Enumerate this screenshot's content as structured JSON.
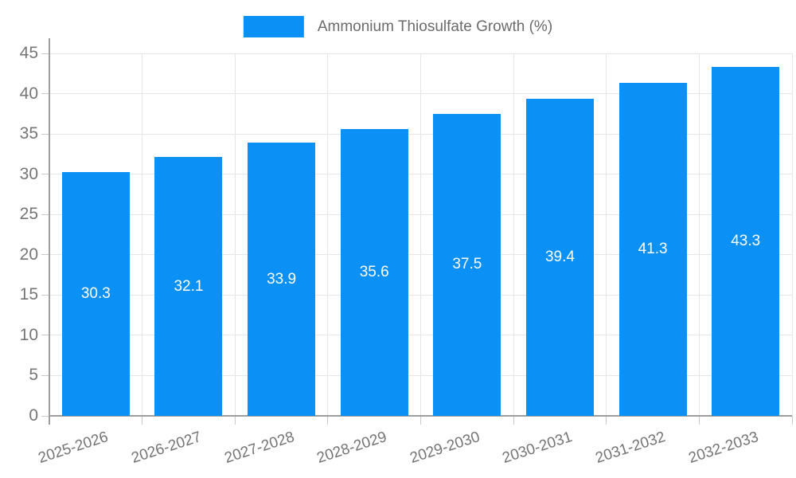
{
  "chart_data": {
    "type": "bar",
    "title": "Ammonium Thiosulfate Growth (%)",
    "legend": {
      "label": "Ammonium Thiosulfate Growth (%)",
      "position": "top"
    },
    "categories": [
      "2025-2026",
      "2026-2027",
      "2027-2028",
      "2028-2029",
      "2029-2030",
      "2030-2031",
      "2031-2032",
      "2032-2033"
    ],
    "series": [
      {
        "name": "Ammonium Thiosulfate Growth (%)",
        "values": [
          30.3,
          32.1,
          33.9,
          35.6,
          37.5,
          39.4,
          41.3,
          43.3
        ]
      }
    ],
    "xlabel": "",
    "ylabel": "",
    "ylim": [
      0,
      45
    ],
    "yticks": [
      0,
      5,
      10,
      15,
      20,
      25,
      30,
      35,
      40,
      45
    ],
    "grid": true,
    "value_labels_shown": true,
    "x_label_rotation_deg": -18,
    "colors": {
      "bar": "#0b90f5",
      "value_label": "#ffffff",
      "axis_text": "#757575",
      "legend_text": "#6b6b6b",
      "gridline": "#e6e6e6",
      "axis_line": "#9e9e9e",
      "tick": "#c9c9c9",
      "background": "#ffffff"
    }
  }
}
